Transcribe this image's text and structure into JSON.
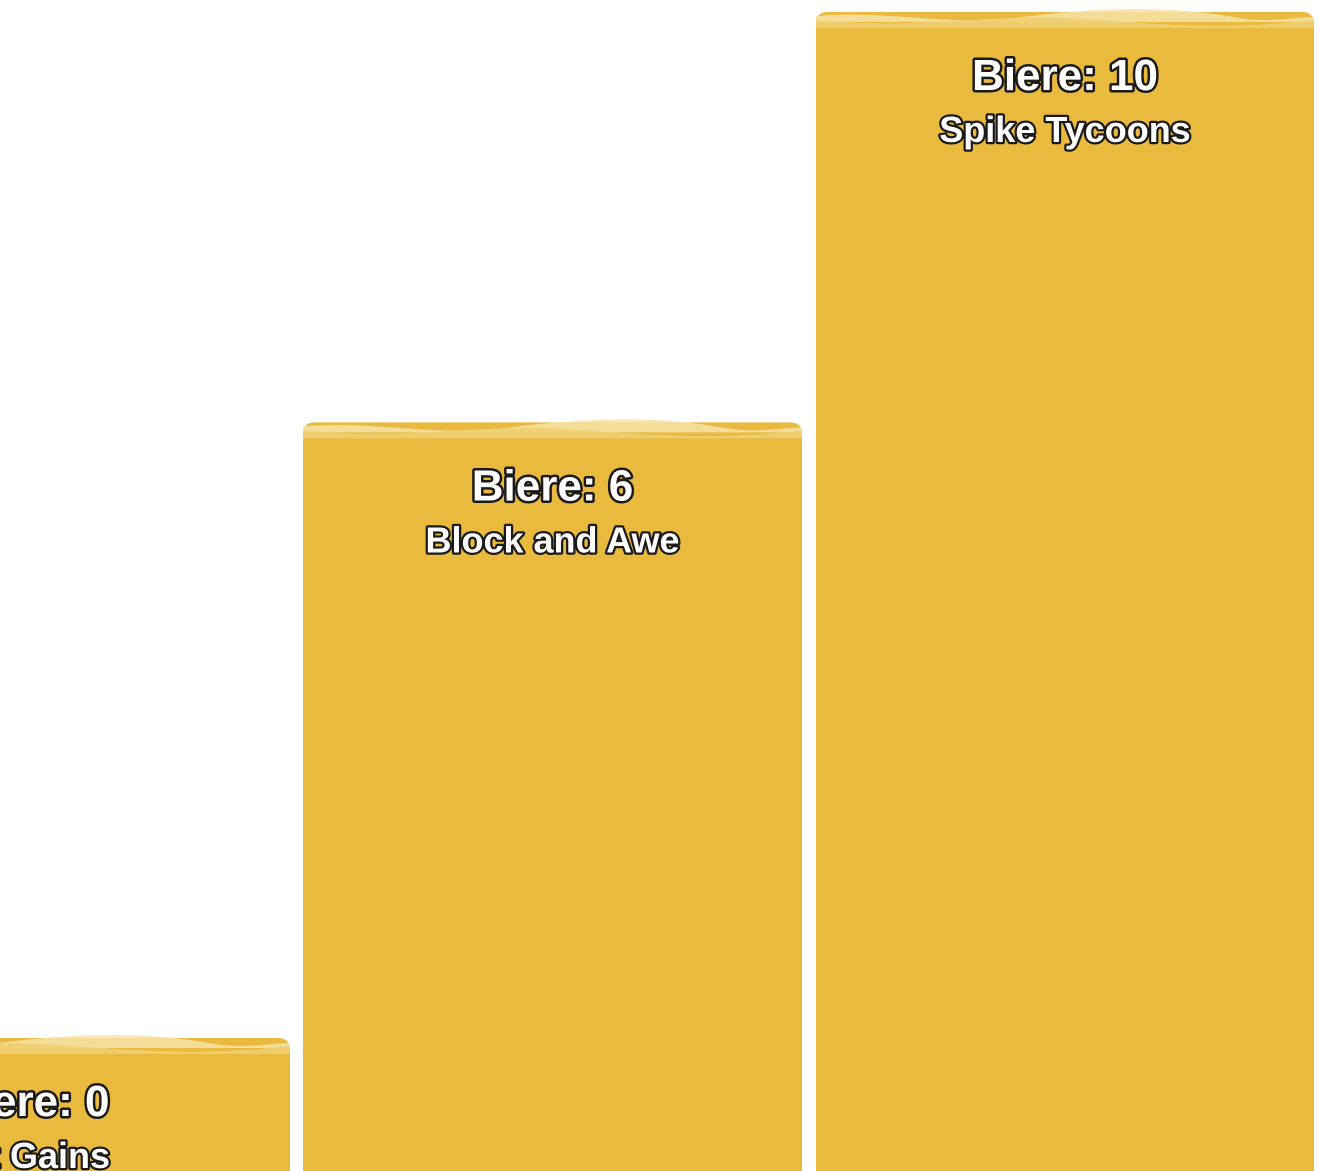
{
  "chart_data": {
    "type": "bar",
    "categories": [
      "Gains",
      "Block and Awe",
      "Spike Tycoons"
    ],
    "series": [
      {
        "values": [
          0,
          6,
          10
        ]
      }
    ],
    "value_prefix": "Biere: ",
    "bar_color": "#E9BA3E",
    "foam_color": "#F0CF72",
    "foam_light_color": "#F6E3A8",
    "visible_value_labels": [
      "ere: 0",
      "Biere: 6",
      "Biere: 10"
    ],
    "visible_team_labels": [
      "t Gains",
      "Block and Awe",
      "Spike Tycoons"
    ],
    "grid": false,
    "legend": "none"
  }
}
